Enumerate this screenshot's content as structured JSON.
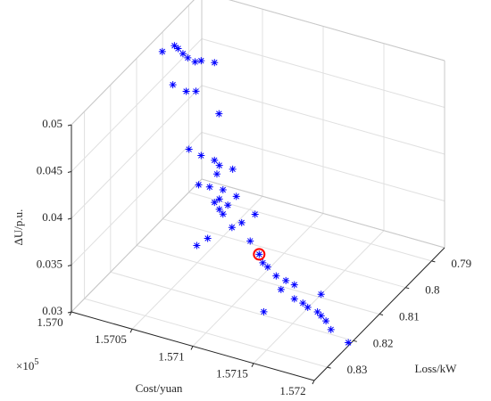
{
  "chart_data": {
    "type": "scatter3d",
    "xlabel": "Cost/yuan",
    "ylabel": "Loss/kW",
    "zlabel": "ΔU/p.u.",
    "x_multiplier": "×10",
    "x_multiplier_power": "5",
    "xlim": [
      1.57,
      1.572
    ],
    "ylim": [
      0.785,
      0.835
    ],
    "zlim": [
      0.03,
      0.05
    ],
    "xticks": [
      {
        "value": 1.57,
        "label": "1.570"
      },
      1.5705,
      1.571,
      1.5715,
      1.572
    ],
    "yticks": [
      0.79,
      0.8,
      0.81,
      0.82,
      0.83
    ],
    "zticks": [
      0.03,
      0.035,
      0.04,
      0.045,
      0.05
    ],
    "grid": true,
    "color": "#0000ff",
    "x": [
      1.57004,
      1.57014,
      1.57017,
      1.57021,
      1.57025,
      1.57031,
      1.57036,
      1.57047,
      1.57017,
      1.57028,
      1.57036,
      1.57055,
      1.57041,
      1.57051,
      1.57062,
      1.57066,
      1.57064,
      1.57077,
      1.57049,
      1.57058,
      1.57069,
      1.57066,
      1.57066,
      1.57073,
      1.5708,
      1.57069,
      1.57062,
      1.57104,
      1.57093,
      1.57085,
      1.57065,
      1.57056,
      1.571,
      1.57116,
      1.57119,
      1.57123,
      1.5713,
      1.57138,
      1.57145,
      1.57134,
      1.57145,
      1.57152,
      1.57156,
      1.57164,
      1.57167,
      1.57167,
      1.57171,
      1.57137,
      1.57188,
      1.57198
    ],
    "y": [
      0.802,
      0.802,
      0.802,
      0.802,
      0.802,
      0.802,
      0.802,
      0.802,
      0.804,
      0.804,
      0.804,
      0.804,
      0.809,
      0.809,
      0.809,
      0.809,
      0.809,
      0.809,
      0.809,
      0.809,
      0.809,
      0.809,
      0.809,
      0.809,
      0.809,
      0.809,
      0.809,
      0.813,
      0.813,
      0.813,
      0.813,
      0.813,
      0.813,
      0.817,
      0.817,
      0.817,
      0.817,
      0.817,
      0.817,
      0.817,
      0.817,
      0.817,
      0.817,
      0.817,
      0.817,
      0.817,
      0.817,
      0.825,
      0.823,
      0.821
    ],
    "z": [
      0.0486,
      0.0496,
      0.0494,
      0.049,
      0.0487,
      0.0485,
      0.0488,
      0.049,
      0.0461,
      0.0458,
      0.0461,
      0.0444,
      0.0415,
      0.0412,
      0.0411,
      0.0407,
      0.0397,
      0.0407,
      0.038,
      0.0381,
      0.0382,
      0.0371,
      0.036,
      0.0367,
      0.0379,
      0.0356,
      0.0366,
      0.038,
      0.0367,
      0.0359,
      0.034,
      0.0329,
      0.035,
      0.0353,
      0.0345,
      0.0342,
      0.0335,
      0.0333,
      0.0331,
      0.0322,
      0.0316,
      0.0314,
      0.0311,
      0.0309,
      0.0329,
      0.0306,
      0.0302,
      0.0322,
      0.0316,
      0.03
    ],
    "highlight": {
      "x": 1.57116,
      "y": 0.817,
      "z": 0.0353,
      "color": "#ff0000"
    }
  }
}
